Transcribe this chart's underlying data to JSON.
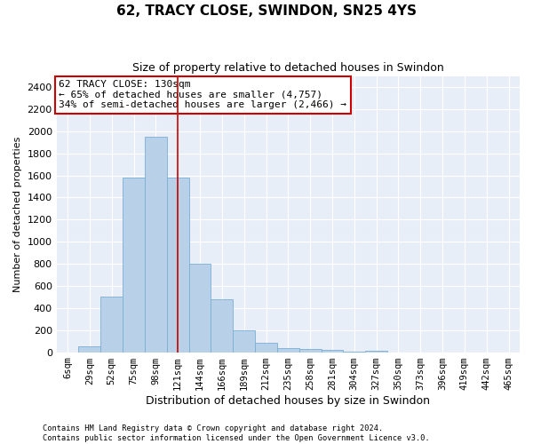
{
  "title": "62, TRACY CLOSE, SWINDON, SN25 4YS",
  "subtitle": "Size of property relative to detached houses in Swindon",
  "xlabel": "Distribution of detached houses by size in Swindon",
  "ylabel": "Number of detached properties",
  "categories": [
    "6sqm",
    "29sqm",
    "52sqm",
    "75sqm",
    "98sqm",
    "121sqm",
    "144sqm",
    "166sqm",
    "189sqm",
    "212sqm",
    "235sqm",
    "258sqm",
    "281sqm",
    "304sqm",
    "327sqm",
    "350sqm",
    "373sqm",
    "396sqm",
    "419sqm",
    "442sqm",
    "465sqm"
  ],
  "values": [
    0,
    55,
    500,
    1580,
    1950,
    1580,
    800,
    480,
    200,
    85,
    35,
    28,
    20,
    5,
    15,
    0,
    0,
    0,
    0,
    0,
    0
  ],
  "highlight_index": 5,
  "bar_color": "#b8d0e8",
  "bar_edge_color": "#7aafd4",
  "background_color": "#e8eef8",
  "ylim": [
    0,
    2500
  ],
  "yticks": [
    0,
    200,
    400,
    600,
    800,
    1000,
    1200,
    1400,
    1600,
    1800,
    2000,
    2200,
    2400
  ],
  "annotation_title": "62 TRACY CLOSE: 130sqm",
  "annotation_line1": "← 65% of detached houses are smaller (4,757)",
  "annotation_line2": "34% of semi-detached houses are larger (2,466) →",
  "annotation_box_facecolor": "#ffffff",
  "annotation_box_edgecolor": "#cc0000",
  "highlight_line_color": "#cc0000",
  "footer1": "Contains HM Land Registry data © Crown copyright and database right 2024.",
  "footer2": "Contains public sector information licensed under the Open Government Licence v3.0.",
  "title_fontsize": 11,
  "subtitle_fontsize": 9,
  "ylabel_fontsize": 8,
  "xlabel_fontsize": 9,
  "tick_fontsize": 8,
  "xtick_fontsize": 7.5
}
